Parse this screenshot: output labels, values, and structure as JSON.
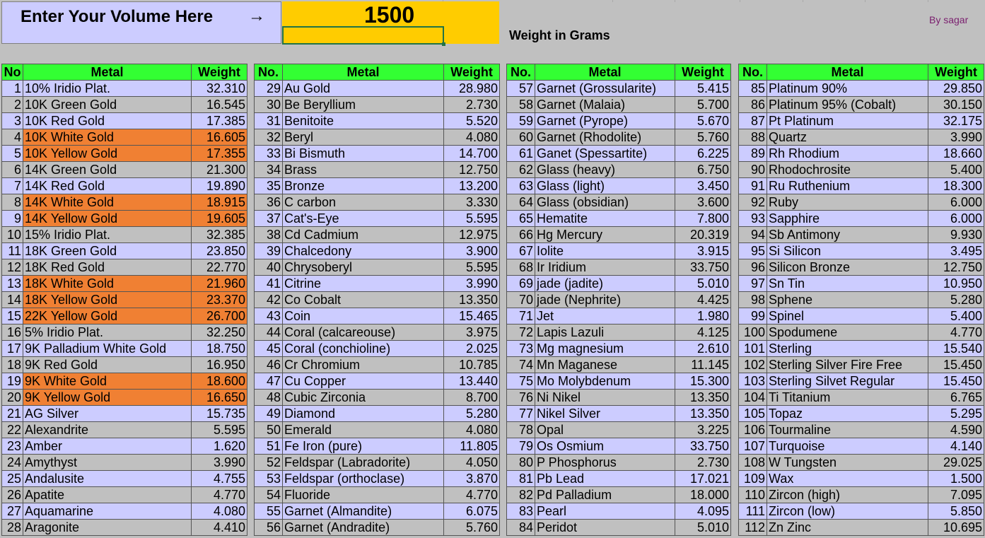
{
  "header": {
    "prompt": "Enter Your Volume Here",
    "arrow": "→",
    "volume": "1500",
    "weight_caption": "Weight in Grams",
    "author": "By sagar"
  },
  "columns": {
    "no": "No",
    "no_dot": "No.",
    "metal": "Metal",
    "weight": "Weight"
  },
  "highlight_color": "#f08033",
  "tables": [
    {
      "no_header": "No",
      "rows": [
        {
          "no": "1",
          "metal": "10% Iridio Plat.",
          "weight": "32.310"
        },
        {
          "no": "2",
          "metal": "10K Green Gold",
          "weight": "16.545"
        },
        {
          "no": "3",
          "metal": "10K Red Gold",
          "weight": "17.385"
        },
        {
          "no": "4",
          "metal": "10K White Gold",
          "weight": "16.605",
          "highlight": true
        },
        {
          "no": "5",
          "metal": "10K Yellow Gold",
          "weight": "17.355",
          "highlight": true
        },
        {
          "no": "6",
          "metal": "14K Green Gold",
          "weight": "21.300"
        },
        {
          "no": "7",
          "metal": "14K Red Gold",
          "weight": "19.890"
        },
        {
          "no": "8",
          "metal": "14K White Gold",
          "weight": "18.915",
          "highlight": true
        },
        {
          "no": "9",
          "metal": "14K Yellow Gold",
          "weight": "19.605",
          "highlight": true
        },
        {
          "no": "10",
          "metal": "15% Iridio Plat.",
          "weight": "32.385"
        },
        {
          "no": "11",
          "metal": "18K Green Gold",
          "weight": "23.850"
        },
        {
          "no": "12",
          "metal": "18K Red Gold",
          "weight": "22.770"
        },
        {
          "no": "13",
          "metal": "18K White Gold",
          "weight": "21.960",
          "highlight": true
        },
        {
          "no": "14",
          "metal": "18K Yellow Gold",
          "weight": "23.370",
          "highlight": true
        },
        {
          "no": "15",
          "metal": "22K Yellow Gold",
          "weight": "26.700",
          "highlight": true
        },
        {
          "no": "16",
          "metal": "5% Iridio Plat.",
          "weight": "32.250"
        },
        {
          "no": "17",
          "metal": "9K Palladium White Gold",
          "weight": "18.750"
        },
        {
          "no": "18",
          "metal": "9K Red Gold",
          "weight": "16.950"
        },
        {
          "no": "19",
          "metal": "9K White Gold",
          "weight": "18.600",
          "highlight": true
        },
        {
          "no": "20",
          "metal": "9K Yellow Gold",
          "weight": "16.650",
          "highlight": true
        },
        {
          "no": "21",
          "metal": "AG Silver",
          "weight": "15.735"
        },
        {
          "no": "22",
          "metal": "Alexandrite",
          "weight": "5.595"
        },
        {
          "no": "23",
          "metal": "Amber",
          "weight": "1.620"
        },
        {
          "no": "24",
          "metal": "Amythyst",
          "weight": "3.990"
        },
        {
          "no": "25",
          "metal": "Andalusite",
          "weight": "4.755"
        },
        {
          "no": "26",
          "metal": "Apatite",
          "weight": "4.770"
        },
        {
          "no": "27",
          "metal": "Aquamarine",
          "weight": "4.080"
        },
        {
          "no": "28",
          "metal": "Aragonite",
          "weight": "4.410"
        }
      ]
    },
    {
      "no_header": "No.",
      "rows": [
        {
          "no": "29",
          "metal": "Au Gold",
          "weight": "28.980"
        },
        {
          "no": "30",
          "metal": "Be Beryllium",
          "weight": "2.730"
        },
        {
          "no": "31",
          "metal": "Benitoite",
          "weight": "5.520"
        },
        {
          "no": "32",
          "metal": "Beryl",
          "weight": "4.080"
        },
        {
          "no": "33",
          "metal": "Bi Bismuth",
          "weight": "14.700"
        },
        {
          "no": "34",
          "metal": "Brass",
          "weight": "12.750"
        },
        {
          "no": "35",
          "metal": "Bronze",
          "weight": "13.200"
        },
        {
          "no": "36",
          "metal": "C carbon",
          "weight": "3.330"
        },
        {
          "no": "37",
          "metal": "Cat's-Eye",
          "weight": "5.595"
        },
        {
          "no": "38",
          "metal": "Cd Cadmium",
          "weight": "12.975"
        },
        {
          "no": "39",
          "metal": "Chalcedony",
          "weight": "3.900"
        },
        {
          "no": "40",
          "metal": "Chrysoberyl",
          "weight": "5.595"
        },
        {
          "no": "41",
          "metal": "Citrine",
          "weight": "3.990"
        },
        {
          "no": "42",
          "metal": "Co Cobalt",
          "weight": "13.350"
        },
        {
          "no": "43",
          "metal": "Coin",
          "weight": "15.465"
        },
        {
          "no": "44",
          "metal": "Coral (calcareouse)",
          "weight": "3.975"
        },
        {
          "no": "45",
          "metal": "Coral (conchioline)",
          "weight": "2.025"
        },
        {
          "no": "46",
          "metal": "Cr Chromium",
          "weight": "10.785"
        },
        {
          "no": "47",
          "metal": "Cu Copper",
          "weight": "13.440"
        },
        {
          "no": "48",
          "metal": "Cubic Zirconia",
          "weight": "8.700"
        },
        {
          "no": "49",
          "metal": "Diamond",
          "weight": "5.280"
        },
        {
          "no": "50",
          "metal": "Emerald",
          "weight": "4.080"
        },
        {
          "no": "51",
          "metal": "Fe Iron (pure)",
          "weight": "11.805"
        },
        {
          "no": "52",
          "metal": "Feldspar (Labradorite)",
          "weight": "4.050"
        },
        {
          "no": "53",
          "metal": "Feldspar (orthoclase)",
          "weight": "3.870"
        },
        {
          "no": "54",
          "metal": "Fluoride",
          "weight": "4.770"
        },
        {
          "no": "55",
          "metal": "Garnet (Almandite)",
          "weight": "6.075"
        },
        {
          "no": "56",
          "metal": "Garnet (Andradite)",
          "weight": "5.760"
        }
      ]
    },
    {
      "no_header": "No.",
      "rows": [
        {
          "no": "57",
          "metal": "Garnet (Grossularite)",
          "weight": "5.415"
        },
        {
          "no": "58",
          "metal": "Garnet (Malaia)",
          "weight": "5.700"
        },
        {
          "no": "59",
          "metal": "Garnet (Pyrope)",
          "weight": "5.670"
        },
        {
          "no": "60",
          "metal": "Garnet (Rhodolite)",
          "weight": "5.760"
        },
        {
          "no": "61",
          "metal": "Ganet (Spessartite)",
          "weight": "6.225"
        },
        {
          "no": "62",
          "metal": "Glass (heavy)",
          "weight": "6.750"
        },
        {
          "no": "63",
          "metal": "Glass (light)",
          "weight": "3.450"
        },
        {
          "no": "64",
          "metal": "Glass (obsidian)",
          "weight": "3.600"
        },
        {
          "no": "65",
          "metal": "Hematite",
          "weight": "7.800"
        },
        {
          "no": "66",
          "metal": "Hg Mercury",
          "weight": "20.319"
        },
        {
          "no": "67",
          "metal": "Iolite",
          "weight": "3.915"
        },
        {
          "no": "68",
          "metal": "Ir Iridium",
          "weight": "33.750"
        },
        {
          "no": "69",
          "metal": "jade (jadite)",
          "weight": "5.010"
        },
        {
          "no": "70",
          "metal": "jade (Nephrite)",
          "weight": "4.425"
        },
        {
          "no": "71",
          "metal": "Jet",
          "weight": "1.980"
        },
        {
          "no": "72",
          "metal": "Lapis Lazuli",
          "weight": "4.125"
        },
        {
          "no": "73",
          "metal": "Mg magnesium",
          "weight": "2.610"
        },
        {
          "no": "74",
          "metal": "Mn Maganese",
          "weight": "11.145"
        },
        {
          "no": "75",
          "metal": "Mo Molybdenum",
          "weight": "15.300"
        },
        {
          "no": "76",
          "metal": "Ni Nikel",
          "weight": "13.350"
        },
        {
          "no": "77",
          "metal": "Nikel Silver",
          "weight": "13.350"
        },
        {
          "no": "78",
          "metal": "Opal",
          "weight": "3.225"
        },
        {
          "no": "79",
          "metal": "Os Osmium",
          "weight": "33.750"
        },
        {
          "no": "80",
          "metal": "P Phosphorus",
          "weight": "2.730"
        },
        {
          "no": "81",
          "metal": "Pb Lead",
          "weight": "17.021"
        },
        {
          "no": "82",
          "metal": "Pd Palladium",
          "weight": "18.000"
        },
        {
          "no": "83",
          "metal": "Pearl",
          "weight": "4.095"
        },
        {
          "no": "84",
          "metal": "Peridot",
          "weight": "5.010"
        }
      ]
    },
    {
      "no_header": "No.",
      "rows": [
        {
          "no": "85",
          "metal": "Platinum 90%",
          "weight": "29.850"
        },
        {
          "no": "86",
          "metal": "Platinum 95% (Cobalt)",
          "weight": "30.150"
        },
        {
          "no": "87",
          "metal": "Pt Platinum",
          "weight": "32.175"
        },
        {
          "no": "88",
          "metal": "Quartz",
          "weight": "3.990"
        },
        {
          "no": "89",
          "metal": "Rh Rhodium",
          "weight": "18.660"
        },
        {
          "no": "90",
          "metal": "Rhodochrosite",
          "weight": "5.400"
        },
        {
          "no": "91",
          "metal": "Ru Ruthenium",
          "weight": "18.300"
        },
        {
          "no": "92",
          "metal": "Ruby",
          "weight": "6.000"
        },
        {
          "no": "93",
          "metal": "Sapphire",
          "weight": "6.000"
        },
        {
          "no": "94",
          "metal": "Sb Antimony",
          "weight": "9.930"
        },
        {
          "no": "95",
          "metal": "Si Silicon",
          "weight": "3.495"
        },
        {
          "no": "96",
          "metal": "Silicon Bronze",
          "weight": "12.750"
        },
        {
          "no": "97",
          "metal": "Sn Tin",
          "weight": "10.950"
        },
        {
          "no": "98",
          "metal": "Sphene",
          "weight": "5.280"
        },
        {
          "no": "99",
          "metal": "Spinel",
          "weight": "5.400"
        },
        {
          "no": "100",
          "metal": "Spodumene",
          "weight": "4.770"
        },
        {
          "no": "101",
          "metal": "Sterling",
          "weight": "15.540"
        },
        {
          "no": "102",
          "metal": "Sterling Silver Fire Free",
          "weight": "15.450"
        },
        {
          "no": "103",
          "metal": "Sterling Silvet Regular",
          "weight": "15.450"
        },
        {
          "no": "104",
          "metal": "Ti Titanium",
          "weight": "6.765"
        },
        {
          "no": "105",
          "metal": "Topaz",
          "weight": "5.295"
        },
        {
          "no": "106",
          "metal": "Tourmaline",
          "weight": "4.590"
        },
        {
          "no": "107",
          "metal": "Turquoise",
          "weight": "4.140"
        },
        {
          "no": "108",
          "metal": "W Tungsten",
          "weight": "29.025"
        },
        {
          "no": "109",
          "metal": "Wax",
          "weight": "1.500"
        },
        {
          "no": "110",
          "metal": "Zircon (high)",
          "weight": "7.095"
        },
        {
          "no": "111",
          "metal": "Zircon (low)",
          "weight": "5.850"
        },
        {
          "no": "112",
          "metal": "Zn Zinc",
          "weight": "10.695"
        }
      ]
    }
  ]
}
